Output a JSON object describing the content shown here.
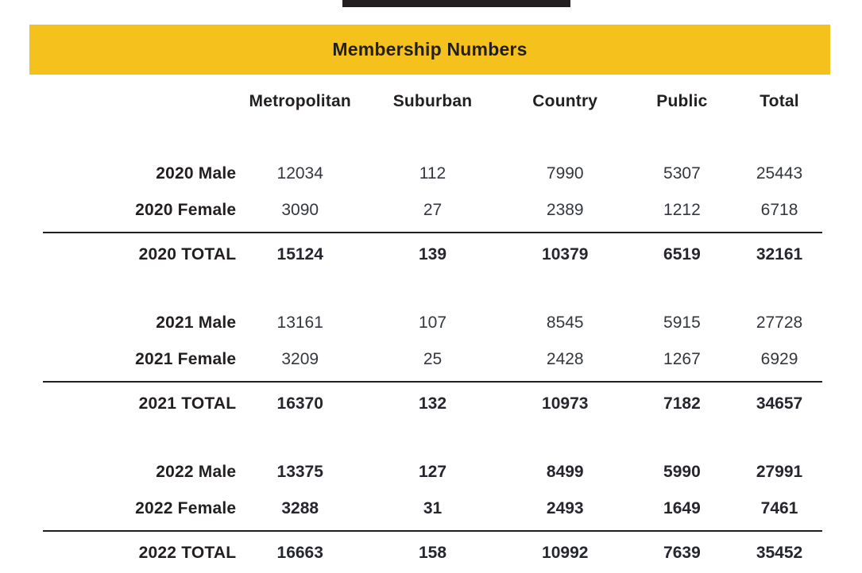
{
  "page": {
    "background_color": "#ffffff",
    "top_accent_bar_color": "#231f20"
  },
  "title_bar": {
    "label": "Membership Numbers",
    "background_color": "#f5c21d",
    "text_color": "#231f20"
  },
  "table": {
    "columns": [
      "Metropolitan",
      "Suburban",
      "Country",
      "Public",
      "Total"
    ],
    "groups": [
      {
        "year": "2020",
        "bold": false,
        "rows": [
          {
            "label": "2020 Male",
            "values": [
              "12034",
              "112",
              "7990",
              "5307",
              "25443"
            ]
          },
          {
            "label": "2020 Female",
            "values": [
              "3090",
              "27",
              "2389",
              "1212",
              "6718"
            ]
          }
        ],
        "total": {
          "label": "2020 TOTAL",
          "values": [
            "15124",
            "139",
            "10379",
            "6519",
            "32161"
          ]
        }
      },
      {
        "year": "2021",
        "bold": false,
        "rows": [
          {
            "label": "2021 Male",
            "values": [
              "13161",
              "107",
              "8545",
              "5915",
              "27728"
            ]
          },
          {
            "label": "2021 Female",
            "values": [
              "3209",
              "25",
              "2428",
              "1267",
              "6929"
            ]
          }
        ],
        "total": {
          "label": "2021 TOTAL",
          "values": [
            "16370",
            "132",
            "10973",
            "7182",
            "34657"
          ]
        }
      },
      {
        "year": "2022",
        "bold": true,
        "rows": [
          {
            "label": "2022 Male",
            "values": [
              "13375",
              "127",
              "8499",
              "5990",
              "27991"
            ]
          },
          {
            "label": "2022 Female",
            "values": [
              "3288",
              "31",
              "2493",
              "1649",
              "7461"
            ]
          }
        ],
        "total": {
          "label": "2022 TOTAL",
          "values": [
            "16663",
            "158",
            "10992",
            "7639",
            "35452"
          ]
        }
      }
    ]
  }
}
